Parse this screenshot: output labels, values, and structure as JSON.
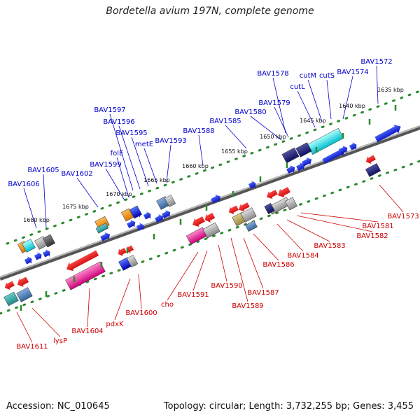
{
  "title": "Bordetella avium 197N, complete genome",
  "footer": {
    "accession": "Accession: NC_010645",
    "summary": "Topology: circular; Length: 3,732,255 bp; Genes: 3,455"
  },
  "colors": {
    "forward_label": "#0000cc",
    "reverse_label": "#cc0000",
    "axis": "#888888",
    "tick": "#2a8a2a"
  },
  "kbp_ticks": [
    "1635 kbp",
    "1640 kbp",
    "1645 kbp",
    "1650 kbp",
    "1655 kbp",
    "1660 kbp",
    "1665 kbp",
    "1670 kbp",
    "1675 kbp",
    "1680 kbp"
  ],
  "forward_labels": [
    "BAV1572",
    "BAV1574",
    "cutS",
    "cutM",
    "BAV1578",
    "cutL",
    "BAV1579",
    "BAV1580",
    "BAV1585",
    "BAV1588",
    "BAV1593",
    "metE",
    "BAV1595",
    "BAV1596",
    "BAV1597",
    "folE",
    "BAV1599",
    "BAV1602",
    "BAV1605",
    "BAV1606"
  ],
  "reverse_labels": [
    "BAV1573",
    "BAV1581",
    "BAV1582",
    "BAV1583",
    "BAV1584",
    "BAV1586",
    "BAV1587",
    "BAV1589",
    "BAV1590",
    "BAV1591",
    "cho",
    "BAV1600",
    "pdxK",
    "BAV1604",
    "lysP",
    "BAV1611"
  ]
}
